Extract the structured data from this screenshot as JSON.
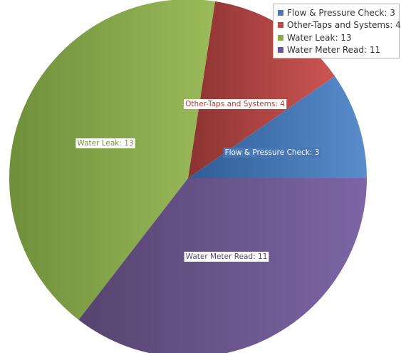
{
  "chart_data": {
    "type": "pie",
    "slices": [
      {
        "label": "Flow & Pressure Check",
        "value": 3,
        "display": "Flow & Pressure Check: 3",
        "color": "#4a78b4",
        "color_light": "#5a8ccc",
        "color_dark": "#2f5d96",
        "text_color": "#ffffff"
      },
      {
        "label": "Other-Taps and Systems",
        "value": 4,
        "display": "Other-Taps and Systems: 4",
        "color": "#b84a47",
        "color_light": "#cc5553",
        "color_dark": "#8c3331",
        "text_color": "#c0392b"
      },
      {
        "label": "Water Leak",
        "value": 13,
        "display": "Water Leak: 13",
        "color": "#8aab4c",
        "color_light": "#9bbb5a",
        "color_dark": "#6f8f3b",
        "text_color": "#6f8f3b"
      },
      {
        "label": "Water Meter Read",
        "value": 11,
        "display": "Water Meter Read: 11",
        "color": "#6b568c",
        "color_light": "#7d65a6",
        "color_dark": "#56446f",
        "text_color": "#56446f"
      }
    ],
    "legend_position": "top-right"
  }
}
